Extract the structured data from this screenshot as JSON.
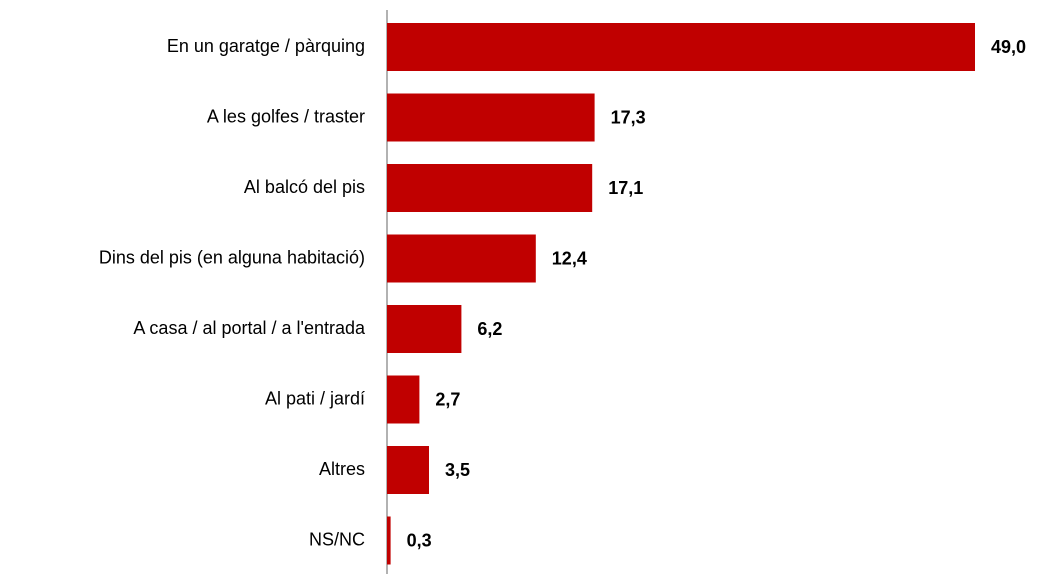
{
  "chart_data": {
    "type": "bar",
    "orientation": "horizontal",
    "categories": [
      "En un garatge / pàrquing",
      "A les golfes / traster",
      "Al balcó del pis",
      "Dins del pis (en alguna habitació)",
      "A casa / al portal / a l'entrada",
      "Al pati / jardí",
      "Altres",
      "NS/NC"
    ],
    "values": [
      49.0,
      17.3,
      17.1,
      12.4,
      6.2,
      2.7,
      3.5,
      0.3
    ],
    "value_labels": [
      "49,0",
      "17,3",
      "17,1",
      "12,4",
      "6,2",
      "2,7",
      "3,5",
      "0,3"
    ],
    "color": "#c00000",
    "xlim": [
      0,
      50
    ]
  }
}
